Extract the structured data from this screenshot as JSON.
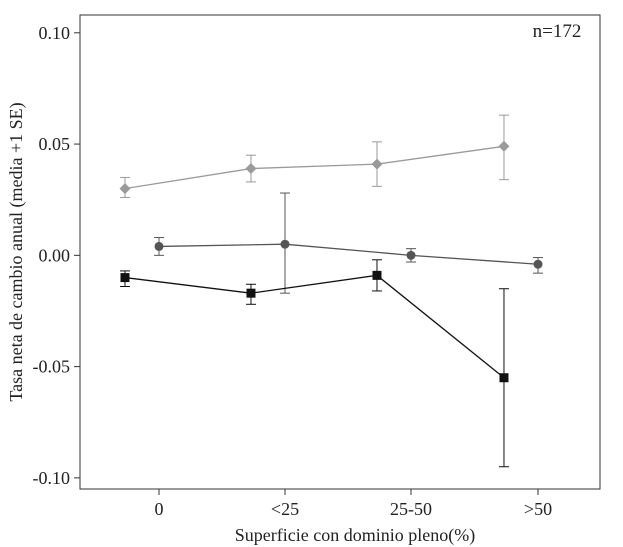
{
  "chart_data": {
    "type": "line",
    "title": "",
    "xlabel": "Superficie con dominio pleno(%)",
    "ylabel": "Tasa neta de cambio anual (media +1 SE)",
    "annotation": "n=172",
    "categories": [
      "0",
      "<25",
      "25-50",
      ">50"
    ],
    "ylim": [
      -0.105,
      0.108
    ],
    "yticks": [
      0.1,
      0.05,
      0.0,
      -0.05,
      -0.1
    ],
    "ytick_labels": [
      "0.10",
      "0.05",
      "0.00",
      "-0.05",
      "-0.10"
    ],
    "grid": false,
    "series": [
      {
        "name": "diamond",
        "marker": "diamond",
        "color": "#9a9a9a",
        "offset": -0.27,
        "values": [
          0.03,
          0.039,
          0.041,
          0.049
        ],
        "err_low": [
          0.026,
          0.033,
          0.031,
          0.034
        ],
        "err_high": [
          0.035,
          0.045,
          0.051,
          0.063
        ]
      },
      {
        "name": "circle",
        "marker": "circle",
        "color": "#555555",
        "offset": 0.0,
        "values": [
          0.004,
          0.005,
          0.0,
          -0.004
        ],
        "err_low": [
          -0.0,
          -0.017,
          -0.003,
          -0.008
        ],
        "err_high": [
          0.008,
          0.028,
          0.003,
          -0.001
        ]
      },
      {
        "name": "square",
        "marker": "square",
        "color": "#111111",
        "offset": -0.27,
        "values": [
          -0.01,
          -0.017,
          -0.009,
          -0.055
        ],
        "err_low": [
          -0.014,
          -0.022,
          -0.016,
          -0.095
        ],
        "err_high": [
          -0.007,
          -0.013,
          -0.002,
          -0.015
        ]
      }
    ]
  }
}
